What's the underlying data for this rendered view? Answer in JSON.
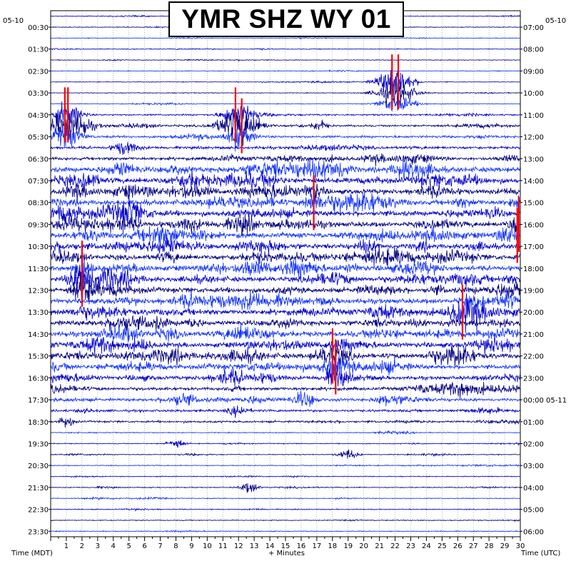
{
  "chart_data": {
    "type": "line",
    "title": "YMR SHZ WY 01",
    "xlabel": "+ Minutes",
    "left_axis_title": "Time (MDT)",
    "right_axis_title": "Time (UTC)",
    "left_date": "05-10",
    "right_date": "05-10",
    "x_ticks": [
      "1",
      "2",
      "3",
      "4",
      "5",
      "6",
      "7",
      "8",
      "9",
      "10",
      "11",
      "12",
      "13",
      "14",
      "15",
      "16",
      "17",
      "18",
      "19",
      "20",
      "21",
      "22",
      "23",
      "24",
      "25",
      "26",
      "27",
      "28",
      "29",
      "30"
    ],
    "xlim": [
      0,
      30
    ],
    "left_tick_labels": [
      "00:30",
      "01:30",
      "02:30",
      "03:30",
      "04:30",
      "05:30",
      "06:30",
      "07:30",
      "08:30",
      "09:30",
      "10:30",
      "11:30",
      "12:30",
      "13:30",
      "14:30",
      "15:30",
      "16:30",
      "17:30",
      "18:30",
      "19:30",
      "20:30",
      "21:30",
      "22:30",
      "23:30"
    ],
    "right_tick_labels": [
      "07:00",
      "08:00",
      "09:00",
      "10:00",
      "11:00",
      "12:00",
      "13:00",
      "14:00",
      "15:00",
      "16:00",
      "17:00",
      "18:00",
      "19:00",
      "20:00",
      "21:00",
      "22:00",
      "23:00",
      "00:00 05-11",
      "01:00",
      "02:00",
      "03:00",
      "04:00",
      "05:00",
      "06:00"
    ],
    "traces_per_hour": 2,
    "trace_colors": [
      "#0000cc",
      "#000080",
      "#1133ff"
    ],
    "clip_color": "#ff0000",
    "grid": "dotted",
    "rows_mdt_hours": 24
  }
}
